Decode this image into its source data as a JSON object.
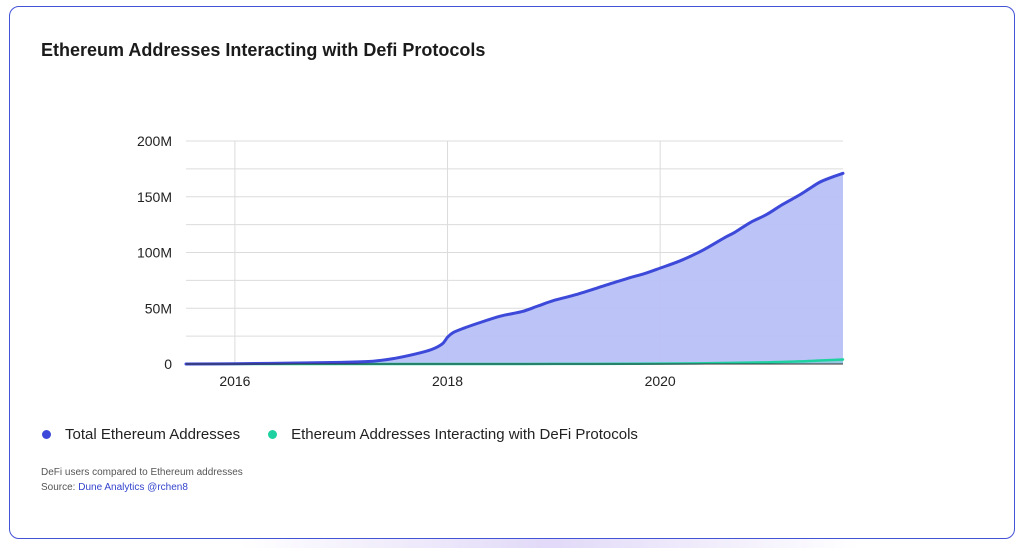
{
  "title": "Ethereum Addresses Interacting with Defi Protocols",
  "legend": {
    "total_label": "Total Ethereum Addresses",
    "defi_label": "Ethereum Addresses Interacting with DeFi Protocols"
  },
  "footnote": {
    "line1": "DeFi users compared to Ethereum addresses",
    "source_prefix": "Source: ",
    "source_link": "Dune Analytics @rchen8"
  },
  "colors": {
    "total_line": "#3d49d9",
    "total_fill": "#b8c0f5",
    "defi_line": "#1ed1a0",
    "grid": "#dcdcdc",
    "card_border": "#4452d6"
  },
  "chart_data": {
    "type": "area",
    "title": "Ethereum Addresses Interacting with Defi Protocols",
    "xlabel": "",
    "ylabel": "",
    "xlim": [
      2015.54,
      2021.72
    ],
    "ylim": [
      0,
      200000000
    ],
    "y_ticks": [
      0,
      50000000,
      100000000,
      150000000,
      200000000
    ],
    "y_tick_labels": [
      "0",
      "50M",
      "100M",
      "150M",
      "200M"
    ],
    "x_ticks": [
      2016,
      2018,
      2020
    ],
    "x_tick_labels": [
      "2016",
      "2018",
      "2020"
    ],
    "grid": true,
    "legend_position": "bottom-left",
    "series": [
      {
        "name": "Total Ethereum Addresses",
        "x": [
          2015.54,
          2016.0,
          2016.5,
          2017.0,
          2017.3,
          2017.5,
          2017.7,
          2017.85,
          2017.95,
          2018.0,
          2018.05,
          2018.15,
          2018.3,
          2018.5,
          2018.7,
          2018.85,
          2019.0,
          2019.2,
          2019.5,
          2019.7,
          2019.85,
          2020.0,
          2020.2,
          2020.4,
          2020.6,
          2020.7,
          2020.85,
          2021.0,
          2021.15,
          2021.3,
          2021.4,
          2021.5,
          2021.6,
          2021.72
        ],
        "y": [
          0,
          200000,
          800000,
          1500000,
          2500000,
          5000000,
          9000000,
          13000000,
          18000000,
          24000000,
          28000000,
          32000000,
          37000000,
          43000000,
          47000000,
          52000000,
          57000000,
          62000000,
          71000000,
          77000000,
          81000000,
          86000000,
          93000000,
          102000000,
          113000000,
          118000000,
          127000000,
          134000000,
          143000000,
          151000000,
          157000000,
          163000000,
          167000000,
          171000000
        ]
      },
      {
        "name": "Ethereum Addresses Interacting with DeFi Protocols",
        "x": [
          2015.54,
          2018.0,
          2019.0,
          2020.0,
          2020.5,
          2021.0,
          2021.3,
          2021.5,
          2021.72
        ],
        "y": [
          0,
          0,
          100000,
          300000,
          800000,
          1500000,
          2300000,
          3100000,
          4000000
        ]
      }
    ]
  }
}
